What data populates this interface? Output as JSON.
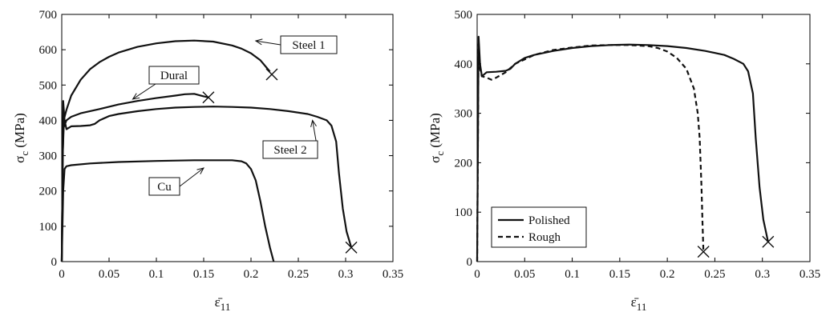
{
  "chart_data": [
    {
      "type": "line",
      "xlabel": "ε̄",
      "xlabel_sub": "11",
      "ylabel": "σ",
      "ylabel_sub": "c",
      "ylabel_unit": "(MPa)",
      "xlim": [
        0,
        0.35
      ],
      "ylim": [
        0,
        700
      ],
      "xticks": [
        "0",
        "0.05",
        "0.1",
        "0.15",
        "0.2",
        "0.25",
        "0.3",
        "0.35"
      ],
      "yticks": [
        "0",
        "100",
        "200",
        "300",
        "400",
        "500",
        "600",
        "700"
      ],
      "grid": false,
      "series": [
        {
          "name": "Steel 1",
          "points": [
            [
              0,
              0
            ],
            [
              0.001,
              300
            ],
            [
              0.002,
              400
            ],
            [
              0.005,
              430
            ],
            [
              0.01,
              470
            ],
            [
              0.02,
              515
            ],
            [
              0.03,
              545
            ],
            [
              0.04,
              565
            ],
            [
              0.05,
              580
            ],
            [
              0.06,
              592
            ],
            [
              0.08,
              608
            ],
            [
              0.1,
              618
            ],
            [
              0.12,
              624
            ],
            [
              0.14,
              626
            ],
            [
              0.16,
              623
            ],
            [
              0.18,
              612
            ],
            [
              0.19,
              603
            ],
            [
              0.2,
              590
            ],
            [
              0.21,
              570
            ],
            [
              0.22,
              538
            ]
          ],
          "end_marker": [
            0.222,
            530
          ]
        },
        {
          "name": "Dural",
          "points": [
            [
              0,
              0
            ],
            [
              0.001,
              300
            ],
            [
              0.002,
              380
            ],
            [
              0.005,
              400
            ],
            [
              0.01,
              410
            ],
            [
              0.02,
              420
            ],
            [
              0.04,
              432
            ],
            [
              0.06,
              445
            ],
            [
              0.08,
              455
            ],
            [
              0.1,
              463
            ],
            [
              0.12,
              470
            ],
            [
              0.13,
              474
            ],
            [
              0.14,
              475
            ],
            [
              0.15,
              468
            ],
            [
              0.155,
              465
            ]
          ],
          "end_marker": [
            0.155,
            465
          ]
        },
        {
          "name": "Steel 2",
          "points": [
            [
              0,
              0
            ],
            [
              0.001,
              300
            ],
            [
              0.0015,
              455
            ],
            [
              0.003,
              400
            ],
            [
              0.005,
              375
            ],
            [
              0.01,
              383
            ],
            [
              0.02,
              384
            ],
            [
              0.03,
              386
            ],
            [
              0.035,
              390
            ],
            [
              0.04,
              400
            ],
            [
              0.05,
              412
            ],
            [
              0.06,
              418
            ],
            [
              0.08,
              426
            ],
            [
              0.1,
              432
            ],
            [
              0.12,
              436
            ],
            [
              0.14,
              438
            ],
            [
              0.16,
              439
            ],
            [
              0.18,
              438
            ],
            [
              0.2,
              436
            ],
            [
              0.22,
              432
            ],
            [
              0.24,
              426
            ],
            [
              0.26,
              418
            ],
            [
              0.27,
              410
            ],
            [
              0.28,
              400
            ],
            [
              0.285,
              385
            ],
            [
              0.29,
              340
            ],
            [
              0.293,
              250
            ],
            [
              0.297,
              150
            ],
            [
              0.301,
              85
            ],
            [
              0.306,
              40
            ]
          ],
          "end_marker": [
            0.306,
            40
          ]
        },
        {
          "name": "Cu",
          "points": [
            [
              0,
              0
            ],
            [
              0.0015,
              200
            ],
            [
              0.003,
              262
            ],
            [
              0.005,
              270
            ],
            [
              0.01,
              273
            ],
            [
              0.03,
              278
            ],
            [
              0.06,
              282
            ],
            [
              0.1,
              285
            ],
            [
              0.14,
              287
            ],
            [
              0.18,
              287
            ],
            [
              0.19,
              284
            ],
            [
              0.195,
              278
            ],
            [
              0.2,
              262
            ],
            [
              0.205,
              230
            ],
            [
              0.21,
              170
            ],
            [
              0.215,
              100
            ],
            [
              0.22,
              40
            ],
            [
              0.224,
              0
            ]
          ]
        }
      ],
      "annotations": [
        {
          "text": "Steel 1",
          "at": [
            0.205,
            625
          ]
        },
        {
          "text": "Dural",
          "at": [
            0.075,
            460
          ]
        },
        {
          "text": "Steel 2",
          "at": [
            0.265,
            400
          ]
        },
        {
          "text": "Cu",
          "at": [
            0.15,
            265
          ]
        }
      ]
    },
    {
      "type": "line",
      "xlabel": "ε̄",
      "xlabel_sub": "11",
      "ylabel": "σ",
      "ylabel_sub": "c",
      "ylabel_unit": "(MPa)",
      "xlim": [
        0,
        0.35
      ],
      "ylim": [
        0,
        500
      ],
      "xticks": [
        "0",
        "0.05",
        "0.1",
        "0.15",
        "0.2",
        "0.25",
        "0.3",
        "0.35"
      ],
      "yticks": [
        "0",
        "100",
        "200",
        "300",
        "400",
        "500"
      ],
      "grid": false,
      "legend": "bottom-left",
      "series": [
        {
          "name": "Polished",
          "style": "solid",
          "points": [
            [
              0,
              0
            ],
            [
              0.001,
              300
            ],
            [
              0.0015,
              455
            ],
            [
              0.003,
              400
            ],
            [
              0.005,
              375
            ],
            [
              0.01,
              383
            ],
            [
              0.02,
              384
            ],
            [
              0.03,
              386
            ],
            [
              0.035,
              390
            ],
            [
              0.04,
              400
            ],
            [
              0.05,
              412
            ],
            [
              0.06,
              418
            ],
            [
              0.08,
              426
            ],
            [
              0.1,
              432
            ],
            [
              0.12,
              436
            ],
            [
              0.14,
              438
            ],
            [
              0.16,
              439
            ],
            [
              0.18,
              438
            ],
            [
              0.2,
              436
            ],
            [
              0.22,
              432
            ],
            [
              0.24,
              426
            ],
            [
              0.26,
              418
            ],
            [
              0.27,
              410
            ],
            [
              0.28,
              400
            ],
            [
              0.285,
              385
            ],
            [
              0.29,
              340
            ],
            [
              0.293,
              250
            ],
            [
              0.297,
              150
            ],
            [
              0.301,
              85
            ],
            [
              0.306,
              40
            ]
          ],
          "end_marker": [
            0.306,
            40
          ]
        },
        {
          "name": "Rough",
          "style": "dashed",
          "points": [
            [
              0,
              0
            ],
            [
              0.001,
              300
            ],
            [
              0.0015,
              440
            ],
            [
              0.003,
              390
            ],
            [
              0.005,
              375
            ],
            [
              0.01,
              372
            ],
            [
              0.015,
              368
            ],
            [
              0.02,
              372
            ],
            [
              0.03,
              383
            ],
            [
              0.04,
              400
            ],
            [
              0.06,
              418
            ],
            [
              0.08,
              428
            ],
            [
              0.1,
              433
            ],
            [
              0.12,
              437
            ],
            [
              0.14,
              438
            ],
            [
              0.16,
              438
            ],
            [
              0.18,
              436
            ],
            [
              0.19,
              432
            ],
            [
              0.2,
              425
            ],
            [
              0.21,
              412
            ],
            [
              0.22,
              390
            ],
            [
              0.228,
              350
            ],
            [
              0.232,
              300
            ],
            [
              0.234,
              250
            ],
            [
              0.236,
              150
            ],
            [
              0.237,
              80
            ],
            [
              0.238,
              20
            ]
          ],
          "end_marker": [
            0.238,
            20
          ]
        }
      ]
    }
  ]
}
